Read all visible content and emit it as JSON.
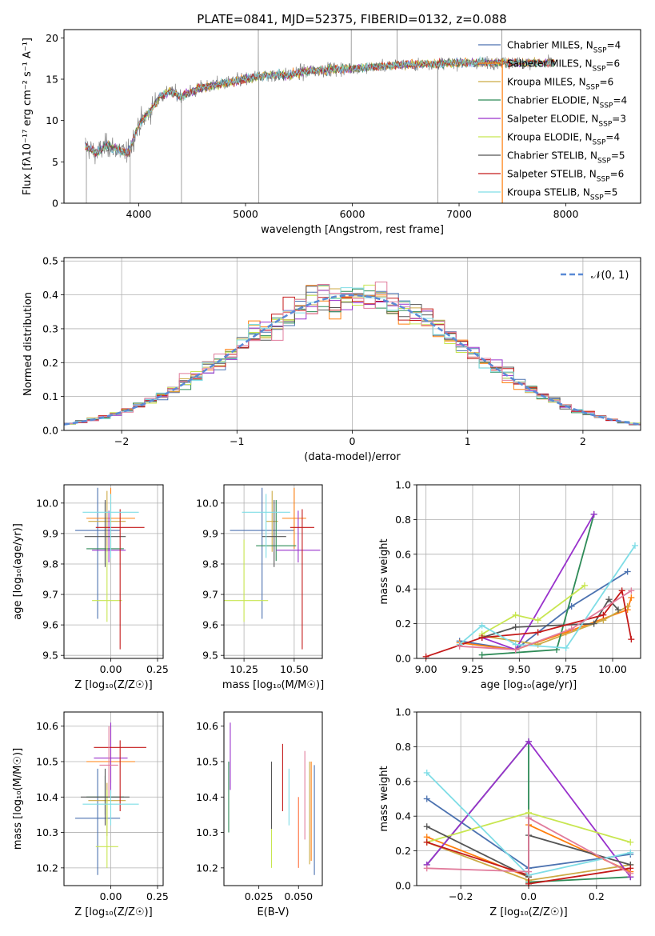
{
  "title": "PLATE=0841, MJD=52375, FIBERID=0132, z=0.088",
  "colors": [
    "#4c72b0",
    "#ff7f0e",
    "#ccaa44",
    "#2e8b57",
    "#9932cc",
    "#c8e650",
    "#555555",
    "#c41a1a",
    "#7fdde6",
    "#e17c9c",
    "#ff6f3c",
    "#6b8e23"
  ],
  "chart_data": [
    {
      "id": "spectrum",
      "type": "line",
      "xlabel": "wavelength [Angstrom, rest frame]",
      "ylabel": "Flux [fλ10⁻¹⁷ erg cm⁻² s⁻¹ A⁻¹]",
      "xlim": [
        3300,
        8700
      ],
      "ylim": [
        0,
        21
      ],
      "xticks": [
        4000,
        5000,
        6000,
        7000,
        8000
      ],
      "yticks": [
        0,
        5,
        10,
        15,
        20
      ],
      "grid": false,
      "legend_position": "right",
      "data_color": "#808080",
      "legend": [
        {
          "name": "Chabrier MILES, N_SSP=4",
          "color": "#4c72b0"
        },
        {
          "name": "Salpeter MILES, N_SSP=6",
          "color": "#ff7f0e"
        },
        {
          "name": "Kroupa MILES, N_SSP=6",
          "color": "#ccaa44"
        },
        {
          "name": "Chabrier ELODIE, N_SSP=4",
          "color": "#2e8b57"
        },
        {
          "name": "Salpeter ELODIE, N_SSP=3",
          "color": "#9932cc"
        },
        {
          "name": "Kroupa ELODIE, N_SSP=4",
          "color": "#c8e650"
        },
        {
          "name": "Chabrier STELIB, N_SSP=5",
          "color": "#555555"
        },
        {
          "name": "Salpeter STELIB, N_SSP=6",
          "color": "#c41a1a"
        },
        {
          "name": "Kroupa STELIB, N_SSP=5",
          "color": "#7fdde6"
        }
      ],
      "continuum": {
        "x": [
          3500,
          3600,
          3700,
          3800,
          3900,
          4000,
          4100,
          4200,
          4300,
          4400,
          4600,
          4800,
          5000,
          5200,
          5400,
          5600,
          5800,
          6000,
          6200,
          6400,
          6600,
          6800,
          7000,
          7200,
          7400,
          7600,
          7900
        ],
        "y": [
          7.0,
          6.0,
          7.0,
          6.5,
          6.0,
          9.5,
          11.0,
          13.0,
          13.5,
          13.0,
          14.0,
          14.5,
          15.0,
          15.5,
          15.5,
          16.0,
          16.2,
          16.3,
          16.5,
          16.7,
          16.8,
          16.9,
          17.0,
          17.0,
          17.0,
          17.0,
          17.0
        ]
      },
      "spikes_down": [
        3510,
        3920,
        4400,
        5125,
        6800,
        7405
      ],
      "spikes_up": [
        5120,
        5990,
        6420,
        7400
      ],
      "model_wavelength_max": 7900
    },
    {
      "id": "residuals",
      "type": "histogram",
      "xlabel": "(data-model)/error",
      "ylabel": "Normed distribution",
      "xlim": [
        -2.5,
        2.5
      ],
      "ylim": [
        0,
        0.51
      ],
      "xticks": [
        -2,
        -1,
        0,
        1,
        2
      ],
      "yticks": [
        0.0,
        0.1,
        0.2,
        0.3,
        0.4,
        0.5
      ],
      "grid": true,
      "legend_position": "top-right",
      "gaussian_label": "𝒩(0, 1)",
      "bin_width": 0.1,
      "n_series": 9
    },
    {
      "id": "age-vs-Z",
      "type": "errorbar",
      "xlabel": "Z [log₁₀(Z/Z☉)]",
      "ylabel": "age  [log₁₀(age/yr)]",
      "xlim": [
        -0.25,
        0.28
      ],
      "ylim": [
        9.49,
        10.06
      ],
      "xticks": [
        0.0,
        0.25
      ],
      "yticks": [
        9.5,
        9.6,
        9.7,
        9.8,
        9.9,
        10.0
      ],
      "grid": true,
      "points": [
        {
          "x": -0.07,
          "xerr": 0.12,
          "y": 9.91,
          "yerr": [
            0.29,
            0.14
          ],
          "color": "#4c72b0"
        },
        {
          "x": 0.0,
          "xerr": 0.13,
          "y": 9.95,
          "yerr": [
            0.1,
            0.1
          ],
          "color": "#ff7f0e"
        },
        {
          "x": -0.02,
          "xerr": 0.1,
          "y": 9.94,
          "yerr": [
            0.1,
            0.1
          ],
          "color": "#ccaa44"
        },
        {
          "x": -0.03,
          "xerr": 0.1,
          "y": 9.85,
          "yerr": [
            0.05,
            0.15
          ],
          "color": "#2e8b57"
        },
        {
          "x": -0.01,
          "xerr": 0.09,
          "y": 9.845,
          "yerr": [
            0.04,
            0.13
          ],
          "color": "#9932cc"
        },
        {
          "x": -0.02,
          "xerr": 0.08,
          "y": 9.68,
          "yerr": [
            0.07,
            0.18
          ],
          "color": "#c8e650"
        },
        {
          "x": -0.03,
          "xerr": 0.11,
          "y": 9.89,
          "yerr": [
            0.1,
            0.12
          ],
          "color": "#555555"
        },
        {
          "x": 0.05,
          "xerr": 0.13,
          "y": 9.92,
          "yerr": [
            0.4,
            0.06
          ],
          "color": "#c41a1a"
        },
        {
          "x": 0.0,
          "xerr": 0.15,
          "y": 9.97,
          "yerr": [
            0.15,
            0.06
          ],
          "color": "#7fdde6"
        }
      ]
    },
    {
      "id": "age-vs-mass",
      "type": "errorbar",
      "xlabel": "mass [log₁₀(M/M☉)]",
      "ylabel": "",
      "xlim": [
        10.15,
        10.64
      ],
      "ylim": [
        9.49,
        10.06
      ],
      "xticks": [
        10.25,
        10.5
      ],
      "yticks": [
        9.5,
        9.6,
        9.7,
        9.8,
        9.9,
        10.0
      ],
      "grid": true,
      "points": [
        {
          "x": 10.34,
          "xerr": 0.16,
          "y": 9.91,
          "yerr": [
            0.29,
            0.14
          ],
          "color": "#4c72b0"
        },
        {
          "x": 10.5,
          "xerr": 0.06,
          "y": 9.95,
          "yerr": [
            0.1,
            0.1
          ],
          "color": "#ff7f0e"
        },
        {
          "x": 10.39,
          "xerr": 0.03,
          "y": 9.94,
          "yerr": [
            0.1,
            0.1
          ],
          "color": "#ccaa44"
        },
        {
          "x": 10.41,
          "xerr": 0.1,
          "y": 9.86,
          "yerr": [
            0.05,
            0.15
          ],
          "color": "#2e8b57"
        },
        {
          "x": 10.52,
          "xerr": 0.11,
          "y": 9.845,
          "yerr": [
            0.04,
            0.13
          ],
          "color": "#9932cc"
        },
        {
          "x": 10.25,
          "xerr": 0.12,
          "y": 9.68,
          "yerr": [
            0.07,
            0.2
          ],
          "color": "#c8e650"
        },
        {
          "x": 10.4,
          "xerr": 0.06,
          "y": 9.89,
          "yerr": [
            0.1,
            0.12
          ],
          "color": "#555555"
        },
        {
          "x": 10.54,
          "xerr": 0.06,
          "y": 9.92,
          "yerr": [
            0.4,
            0.06
          ],
          "color": "#c41a1a"
        },
        {
          "x": 10.36,
          "xerr": 0.12,
          "y": 9.97,
          "yerr": [
            0.15,
            0.06
          ],
          "color": "#7fdde6"
        }
      ]
    },
    {
      "id": "weight-vs-age",
      "type": "line",
      "xlabel": "age  [log₁₀(age/yr)]",
      "ylabel": "mass weight",
      "xlim": [
        8.95,
        10.15
      ],
      "ylim": [
        0,
        1.0
      ],
      "xticks": [
        9.0,
        9.25,
        9.5,
        9.75,
        10.0
      ],
      "yticks": [
        0.0,
        0.2,
        0.4,
        0.6,
        0.8,
        1.0
      ],
      "grid": true,
      "series": [
        {
          "color": "#4c72b0",
          "x": [
            9.18,
            9.48,
            9.78,
            10.08
          ],
          "y": [
            0.1,
            0.05,
            0.3,
            0.5
          ]
        },
        {
          "color": "#ff7f0e",
          "x": [
            9.18,
            9.48,
            9.75,
            10.08,
            10.1
          ],
          "y": [
            0.09,
            0.05,
            0.15,
            0.28,
            0.35
          ]
        },
        {
          "color": "#ccaa44",
          "x": [
            9.3,
            9.6,
            9.95,
            10.08
          ],
          "y": [
            0.13,
            0.08,
            0.22,
            0.3
          ]
        },
        {
          "color": "#2e8b57",
          "x": [
            9.3,
            9.7,
            9.9
          ],
          "y": [
            0.02,
            0.05,
            0.83
          ]
        },
        {
          "color": "#9932cc",
          "x": [
            9.3,
            9.48,
            9.9
          ],
          "y": [
            0.12,
            0.05,
            0.83
          ]
        },
        {
          "color": "#c8e650",
          "x": [
            9.3,
            9.48,
            9.6,
            9.85
          ],
          "y": [
            0.14,
            0.25,
            0.22,
            0.42
          ]
        },
        {
          "color": "#555555",
          "x": [
            9.3,
            9.48,
            9.9,
            9.98,
            10.03
          ],
          "y": [
            0.12,
            0.18,
            0.2,
            0.34,
            0.28
          ]
        },
        {
          "color": "#c41a1a",
          "x": [
            9.0,
            9.3,
            9.6,
            9.95,
            10.05,
            10.1
          ],
          "y": [
            0.01,
            0.12,
            0.15,
            0.25,
            0.39,
            0.11
          ]
        },
        {
          "color": "#7fdde6",
          "x": [
            9.18,
            9.3,
            9.48,
            9.75,
            10.12
          ],
          "y": [
            0.08,
            0.19,
            0.08,
            0.06,
            0.65
          ]
        },
        {
          "color": "#e17c9c",
          "x": [
            9.18,
            9.48,
            9.78,
            10.1
          ],
          "y": [
            0.07,
            0.05,
            0.17,
            0.39
          ]
        }
      ]
    },
    {
      "id": "mass-vs-Z",
      "type": "errorbar",
      "xlabel": "Z [log₁₀(Z/Z☉)]",
      "ylabel": "mass [log₁₀(M/M☉)]",
      "xlim": [
        -0.25,
        0.28
      ],
      "ylim": [
        10.15,
        10.64
      ],
      "xticks": [
        0.0,
        0.25
      ],
      "yticks": [
        10.2,
        10.3,
        10.4,
        10.5,
        10.6
      ],
      "grid": true,
      "points": [
        {
          "x": -0.07,
          "xerr": 0.12,
          "y": 10.34,
          "yerr": [
            0.16,
            0.14
          ],
          "color": "#4c72b0"
        },
        {
          "x": 0.0,
          "xerr": 0.13,
          "y": 10.5,
          "yerr": [
            0.06,
            0.1
          ],
          "color": "#ff7f0e"
        },
        {
          "x": -0.02,
          "xerr": 0.1,
          "y": 10.39,
          "yerr": [
            0.1,
            0.05
          ],
          "color": "#ccaa44"
        },
        {
          "x": -0.03,
          "xerr": 0.1,
          "y": 10.4,
          "yerr": [
            0.05,
            0.06
          ],
          "color": "#2e8b57"
        },
        {
          "x": 0.0,
          "xerr": 0.09,
          "y": 10.51,
          "yerr": [
            0.1,
            0.1
          ],
          "color": "#9932cc"
        },
        {
          "x": -0.02,
          "xerr": 0.06,
          "y": 10.26,
          "yerr": [
            0.06,
            0.16
          ],
          "color": "#c8e650"
        },
        {
          "x": -0.03,
          "xerr": 0.13,
          "y": 10.4,
          "yerr": [
            0.08,
            0.08
          ],
          "color": "#555555"
        },
        {
          "x": 0.05,
          "xerr": 0.14,
          "y": 10.54,
          "yerr": [
            0.18,
            0.02
          ],
          "color": "#c41a1a"
        },
        {
          "x": 0.0,
          "xerr": 0.15,
          "y": 10.38,
          "yerr": [
            0.06,
            0.04
          ],
          "color": "#7fdde6"
        },
        {
          "x": -0.01,
          "xerr": 0.05,
          "y": 10.49,
          "yerr": [
            0.09,
            0.11
          ],
          "color": "#e17c9c"
        }
      ]
    },
    {
      "id": "mass-vs-ebv",
      "type": "errorbar",
      "xlabel": "E(B-V)",
      "ylabel": "",
      "xlim": [
        0.003,
        0.065
      ],
      "ylim": [
        10.15,
        10.64
      ],
      "xticks": [
        0.025,
        0.05
      ],
      "yticks": [
        10.2,
        10.3,
        10.4,
        10.5,
        10.6
      ],
      "grid": false,
      "points": [
        {
          "x": 0.06,
          "xerr": 0.0,
          "y": 10.34,
          "yerr": [
            0.16,
            0.15
          ],
          "color": "#4c72b0"
        },
        {
          "x": 0.058,
          "xerr": 0.0,
          "y": 10.45,
          "yerr": [
            0.23,
            0.05
          ],
          "color": "#ff7f0e"
        },
        {
          "x": 0.057,
          "xerr": 0.0,
          "y": 10.36,
          "yerr": [
            0.15,
            0.14
          ],
          "color": "#ccaa44"
        },
        {
          "x": 0.006,
          "xerr": 0.0,
          "y": 10.4,
          "yerr": [
            0.1,
            0.1
          ],
          "color": "#2e8b57"
        },
        {
          "x": 0.007,
          "xerr": 0.0,
          "y": 10.52,
          "yerr": [
            0.1,
            0.09
          ],
          "color": "#9932cc"
        },
        {
          "x": 0.033,
          "xerr": 0.0,
          "y": 10.25,
          "yerr": [
            0.05,
            0.06
          ],
          "color": "#c8e650"
        },
        {
          "x": 0.033,
          "xerr": 0.0,
          "y": 10.41,
          "yerr": [
            0.1,
            0.09
          ],
          "color": "#555555"
        },
        {
          "x": 0.04,
          "xerr": 0.0,
          "y": 10.46,
          "yerr": [
            0.1,
            0.09
          ],
          "color": "#c41a1a"
        },
        {
          "x": 0.044,
          "xerr": 0.0,
          "y": 10.4,
          "yerr": [
            0.08,
            0.08
          ],
          "color": "#7fdde6"
        },
        {
          "x": 0.054,
          "xerr": 0.0,
          "y": 10.45,
          "yerr": [
            0.17,
            0.08
          ],
          "color": "#e17c9c"
        },
        {
          "x": 0.05,
          "xerr": 0.0,
          "y": 10.3,
          "yerr": [
            0.1,
            0.1
          ],
          "color": "#ff6f3c"
        }
      ]
    },
    {
      "id": "weight-vs-Z",
      "type": "line",
      "xlabel": "Z [log₁₀(Z/Z☉)]",
      "ylabel": "mass weight",
      "xlim": [
        -0.33,
        0.33
      ],
      "ylim": [
        0,
        1.0
      ],
      "xticks": [
        -0.2,
        0.0,
        0.2
      ],
      "yticks": [
        0.0,
        0.2,
        0.4,
        0.6,
        0.8,
        1.0
      ],
      "grid": true,
      "series": [
        {
          "color": "#4c72b0",
          "x": [
            -0.3,
            0.0,
            0.3
          ],
          "y": [
            0.5,
            0.1,
            0.18
          ]
        },
        {
          "color": "#ff7f0e",
          "x": [
            -0.3,
            0.0,
            0.0,
            0.3
          ],
          "y": [
            0.28,
            0.05,
            0.35,
            0.08
          ]
        },
        {
          "color": "#ccaa44",
          "x": [
            -0.3,
            0.0,
            0.3
          ],
          "y": [
            0.25,
            0.03,
            0.12
          ]
        },
        {
          "color": "#2e8b57",
          "x": [
            -0.3,
            0.0,
            0.0,
            0.3
          ],
          "y": [
            0.12,
            0.83,
            0.02,
            0.05
          ]
        },
        {
          "color": "#9932cc",
          "x": [
            -0.3,
            0.0,
            0.3
          ],
          "y": [
            0.12,
            0.83,
            0.05
          ]
        },
        {
          "color": "#c8e650",
          "x": [
            -0.3,
            0.0,
            0.3
          ],
          "y": [
            0.25,
            0.42,
            0.25
          ]
        },
        {
          "color": "#555555",
          "x": [
            -0.3,
            0.0,
            0.0,
            0.3
          ],
          "y": [
            0.34,
            0.05,
            0.29,
            0.12
          ]
        },
        {
          "color": "#c41a1a",
          "x": [
            -0.3,
            0.0,
            0.0,
            0.3
          ],
          "y": [
            0.25,
            0.06,
            0.01,
            0.1
          ]
        },
        {
          "color": "#7fdde6",
          "x": [
            -0.3,
            0.0,
            0.3
          ],
          "y": [
            0.65,
            0.06,
            0.19
          ]
        },
        {
          "color": "#e17c9c",
          "x": [
            -0.3,
            0.0,
            0.0,
            0.3
          ],
          "y": [
            0.1,
            0.08,
            0.39,
            0.07
          ]
        }
      ]
    }
  ]
}
